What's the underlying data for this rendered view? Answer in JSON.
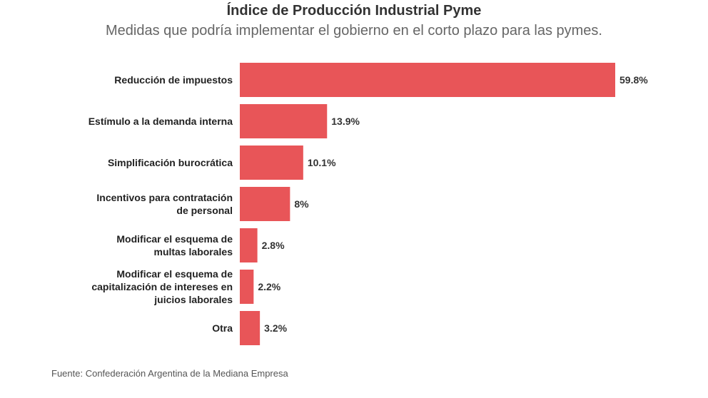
{
  "chart_data": {
    "type": "bar",
    "orientation": "horizontal",
    "title": "Índice de Producción Industrial Pyme",
    "subtitle": "Medidas que podría implementar el gobierno en el corto plazo para las pymes.",
    "source": "Fuente: Confederación Argentina de la Mediana Empresa",
    "categories": [
      [
        "Reducción de impuestos"
      ],
      [
        "Estímulo a la demanda interna"
      ],
      [
        "Simplificación burocrática"
      ],
      [
        "Incentivos para contratación",
        "de personal"
      ],
      [
        "Modificar el esquema de",
        "multas laborales"
      ],
      [
        "Modificar el esquema de",
        "capitalización de intereses en",
        "juicios laborales"
      ],
      [
        "Otra"
      ]
    ],
    "values": [
      59.8,
      13.9,
      10.1,
      8,
      2.8,
      2.2,
      3.2
    ],
    "labels": [
      "59.8%",
      "13.9%",
      "10.1%",
      "8%",
      "2.8%",
      "2.2%",
      "3.2%"
    ],
    "unit": "%",
    "xlim": [
      0,
      59.8
    ],
    "grid": false,
    "bar_color": "#e85558"
  }
}
